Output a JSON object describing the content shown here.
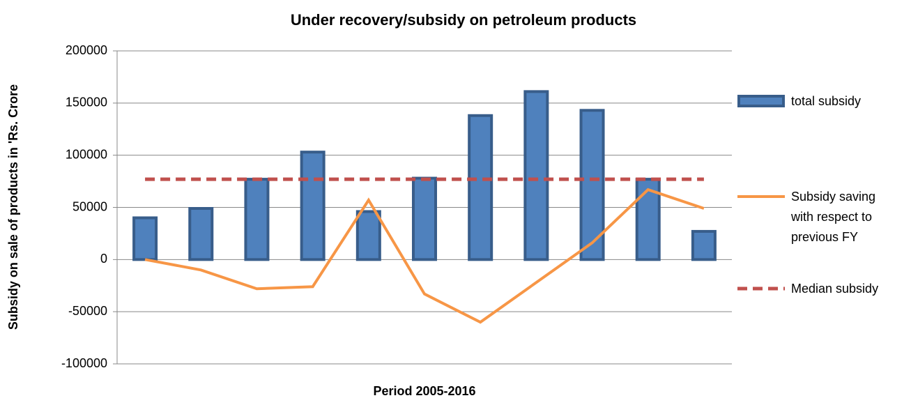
{
  "chart_data": {
    "type": "bar",
    "title": "Under recovery/subsidy on petroleum products",
    "x_label": "Period 2005-2016",
    "y_label": "Subsidy on sale of products in 'Rs. Crore",
    "categories": [
      null,
      null,
      null,
      null,
      null,
      null,
      null,
      null,
      null,
      null,
      null
    ],
    "series": [
      {
        "name": "total subsidy",
        "type": "bar",
        "color": "#4f81bd",
        "values": [
          40000,
          49000,
          77000,
          103000,
          46000,
          78000,
          138000,
          161000,
          143000,
          77000,
          27000
        ]
      },
      {
        "name": "Subsidy saving with respect to previous FY",
        "type": "line",
        "color": "#f79646",
        "values": [
          0,
          -10000,
          -28000,
          -26000,
          57000,
          -33000,
          -60000,
          -22000,
          16000,
          67000,
          49000
        ]
      },
      {
        "name": "Median subsidy",
        "type": "line",
        "dashed": true,
        "color": "#c0504d",
        "values": [
          77000,
          77000,
          77000,
          77000,
          77000,
          77000,
          77000,
          77000,
          77000,
          77000,
          77000
        ]
      }
    ],
    "ylim": [
      -100000,
      200000
    ],
    "yticks": [
      -100000,
      -50000,
      0,
      50000,
      100000,
      150000,
      200000
    ],
    "grid": true,
    "legend": "right"
  }
}
